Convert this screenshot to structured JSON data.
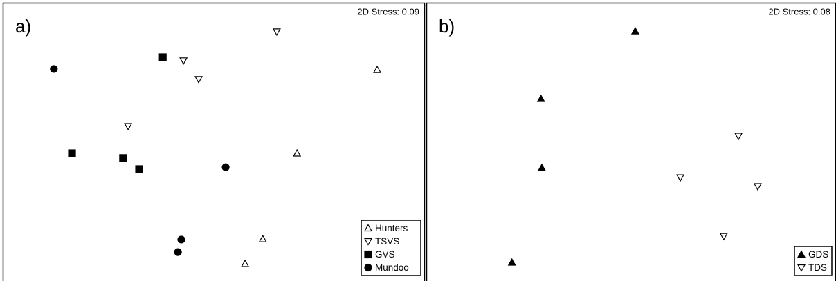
{
  "chart_data": [
    {
      "type": "scatter",
      "panel_label": "a)",
      "annotation": "2D Stress: 0.09",
      "xlim": [
        0,
        100
      ],
      "ylim": [
        0,
        100
      ],
      "legend": "lower right",
      "series": [
        {
          "name": "Hunters",
          "marker": "triangle-up-open",
          "color": "#000000",
          "x": [
            88.7,
            69.7,
            61.6,
            57.4
          ],
          "y": [
            75.9,
            45.9,
            15.1,
            6.2
          ]
        },
        {
          "name": "TSVS",
          "marker": "triangle-down-open",
          "color": "#000000",
          "x": [
            64.9,
            42.8,
            46.4,
            29.7
          ],
          "y": [
            89.6,
            79.2,
            72.5,
            55.6
          ]
        },
        {
          "name": "GVS",
          "marker": "square-filled",
          "color": "#000000",
          "x": [
            37.9,
            16.4,
            28.5,
            32.3
          ],
          "y": [
            80.4,
            45.9,
            44.2,
            40.2
          ]
        },
        {
          "name": "Mundoo",
          "marker": "circle-filled",
          "color": "#000000",
          "x": [
            12.1,
            52.8,
            42.3,
            41.5
          ],
          "y": [
            76.2,
            40.9,
            14.9,
            10.4
          ]
        }
      ]
    },
    {
      "type": "scatter",
      "panel_label": "b)",
      "annotation": "2D Stress: 0.08",
      "xlim": [
        0,
        100
      ],
      "ylim": [
        0,
        100
      ],
      "legend": "lower right",
      "series": [
        {
          "name": "GDS",
          "marker": "triangle-up-filled",
          "color": "#000000",
          "x": [
            51.0,
            28.0,
            28.2,
            20.9
          ],
          "y": [
            89.8,
            65.5,
            40.7,
            6.7
          ]
        },
        {
          "name": "TDS",
          "marker": "triangle-down-open",
          "color": "#000000",
          "x": [
            76.2,
            62.0,
            80.9,
            72.6
          ],
          "y": [
            52.1,
            37.2,
            34.0,
            16.1
          ]
        }
      ]
    }
  ]
}
